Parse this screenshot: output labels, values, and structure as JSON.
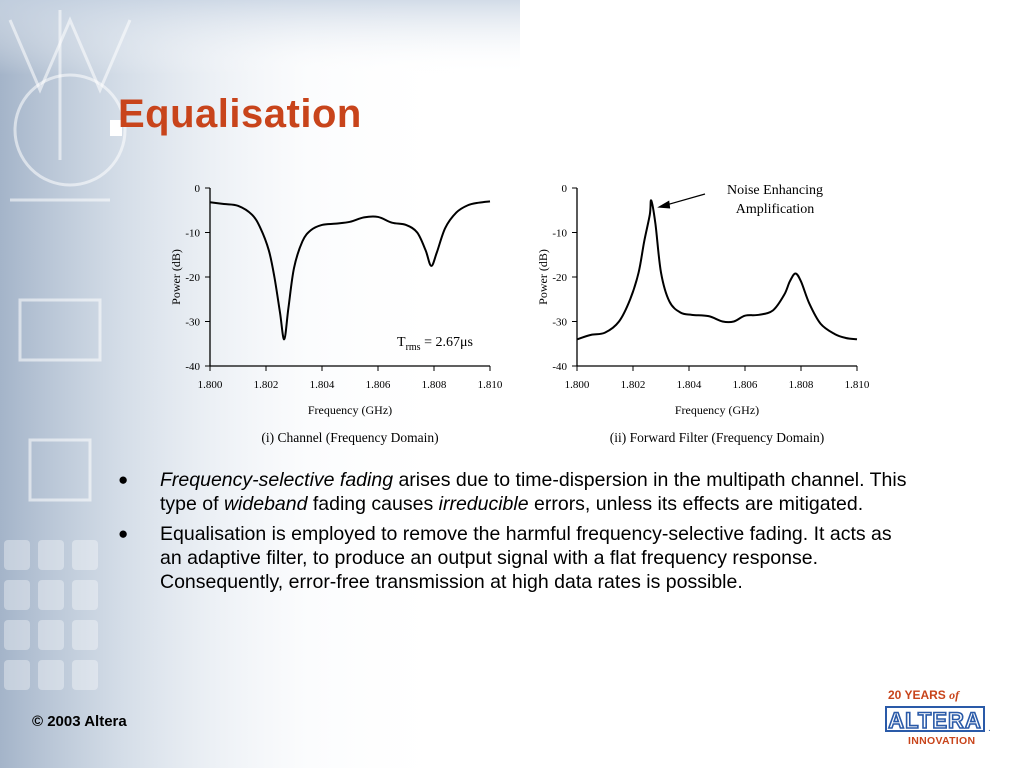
{
  "slide": {
    "title": "Equalisation",
    "copyright": "© 2003 Altera"
  },
  "logo": {
    "years_text": "20 YEARS",
    "of_text": "of",
    "brand": "ALTERA.",
    "tagline": "INNOVATION",
    "color": "#c8441b"
  },
  "bullets": [
    {
      "parts": [
        {
          "text": "Frequency-selective fading",
          "italic": true
        },
        {
          "text": " arises due to time-dispersion in the multipath channel.  This type of ",
          "italic": false
        },
        {
          "text": "wideband",
          "italic": true
        },
        {
          "text": " fading causes ",
          "italic": false
        },
        {
          "text": "irreducible",
          "italic": true
        },
        {
          "text": " errors, unless its effects are mitigated.",
          "italic": false
        }
      ]
    },
    {
      "parts": [
        {
          "text": "Equalisation is employed to remove the harmful frequency-selective fading.  It acts as an adaptive filter, to produce an output signal with a flat frequency response.  Consequently, error-free transmission at high data rates is possible.",
          "italic": false
        }
      ]
    }
  ],
  "chart_data": [
    {
      "type": "line",
      "caption": "(i) Channel (Frequency Domain)",
      "xlabel": "Frequency (GHz)",
      "ylabel": "Power (dB)",
      "xlim": [
        1.8,
        1.81
      ],
      "ylim": [
        -40,
        0
      ],
      "xticks": [
        "1.800",
        "1.802",
        "1.804",
        "1.806",
        "1.808",
        "1.810"
      ],
      "yticks": [
        "0",
        "-10",
        "-20",
        "-30",
        "-40"
      ],
      "annotation": {
        "main": "T",
        "sub": "rms",
        "rest": " = 2.67μs"
      },
      "series": [
        {
          "x": [
            1.8,
            1.8005,
            1.801,
            1.8015,
            1.8018,
            1.8021,
            1.8023,
            1.8025,
            1.80265,
            1.8028,
            1.803,
            1.8033,
            1.8036,
            1.804,
            1.8045,
            1.805,
            1.8055,
            1.806,
            1.8065,
            1.807,
            1.8074,
            1.8077,
            1.8079,
            1.8081,
            1.8084,
            1.8088,
            1.8092,
            1.8096,
            1.81
          ],
          "y": [
            -3.2,
            -3.6,
            -4.0,
            -6.0,
            -9.0,
            -14.0,
            -20.0,
            -28.0,
            -34.0,
            -27.0,
            -18.0,
            -12.0,
            -9.5,
            -8.3,
            -8.0,
            -7.6,
            -6.6,
            -6.5,
            -7.8,
            -8.3,
            -10.0,
            -14.0,
            -17.5,
            -14.5,
            -9.0,
            -5.5,
            -3.9,
            -3.3,
            -3.0
          ]
        }
      ]
    },
    {
      "type": "line",
      "caption": "(ii) Forward Filter (Frequency Domain)",
      "xlabel": "Frequency (GHz)",
      "ylabel": "Power (dB)",
      "xlim": [
        1.8,
        1.81
      ],
      "ylim": [
        -40,
        0
      ],
      "xticks": [
        "1.800",
        "1.802",
        "1.804",
        "1.806",
        "1.808",
        "1.810"
      ],
      "yticks": [
        "0",
        "-10",
        "-20",
        "-30",
        "-40"
      ],
      "annotation": {
        "main": "Noise Enhancing",
        "line2": "Amplification"
      },
      "series": [
        {
          "x": [
            1.8,
            1.8005,
            1.801,
            1.8015,
            1.8019,
            1.8022,
            1.8024,
            1.8026,
            1.80265,
            1.8028,
            1.803,
            1.8033,
            1.8037,
            1.8041,
            1.8047,
            1.8052,
            1.8056,
            1.806,
            1.8065,
            1.807,
            1.8074,
            1.8076,
            1.8078,
            1.808,
            1.8083,
            1.8087,
            1.8092,
            1.8096,
            1.81
          ],
          "y": [
            -34.0,
            -33.0,
            -32.5,
            -30.0,
            -25.0,
            -19.0,
            -12.0,
            -6.0,
            -2.8,
            -8.0,
            -19.0,
            -25.5,
            -28.0,
            -28.5,
            -28.8,
            -30.0,
            -30.0,
            -28.7,
            -28.5,
            -27.5,
            -24.0,
            -21.0,
            -19.2,
            -21.0,
            -26.0,
            -30.5,
            -32.8,
            -33.7,
            -34.0
          ]
        }
      ]
    }
  ]
}
